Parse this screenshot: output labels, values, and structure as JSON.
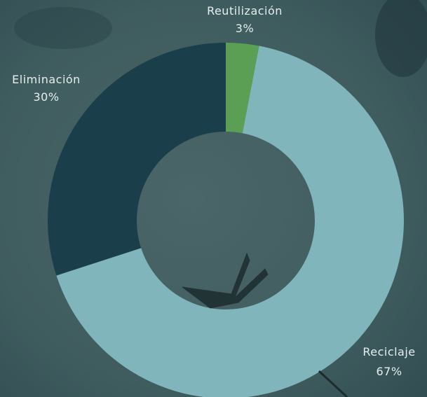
{
  "chart_data": {
    "type": "donut",
    "categories": [
      "Reutilización",
      "Reciclaje",
      "Eliminación"
    ],
    "values": [
      3,
      67,
      30
    ],
    "value_labels": [
      "3%",
      "67%",
      "30%"
    ],
    "colors": [
      "#5b9f55",
      "#7fb5bb",
      "#1b3e4b"
    ]
  }
}
